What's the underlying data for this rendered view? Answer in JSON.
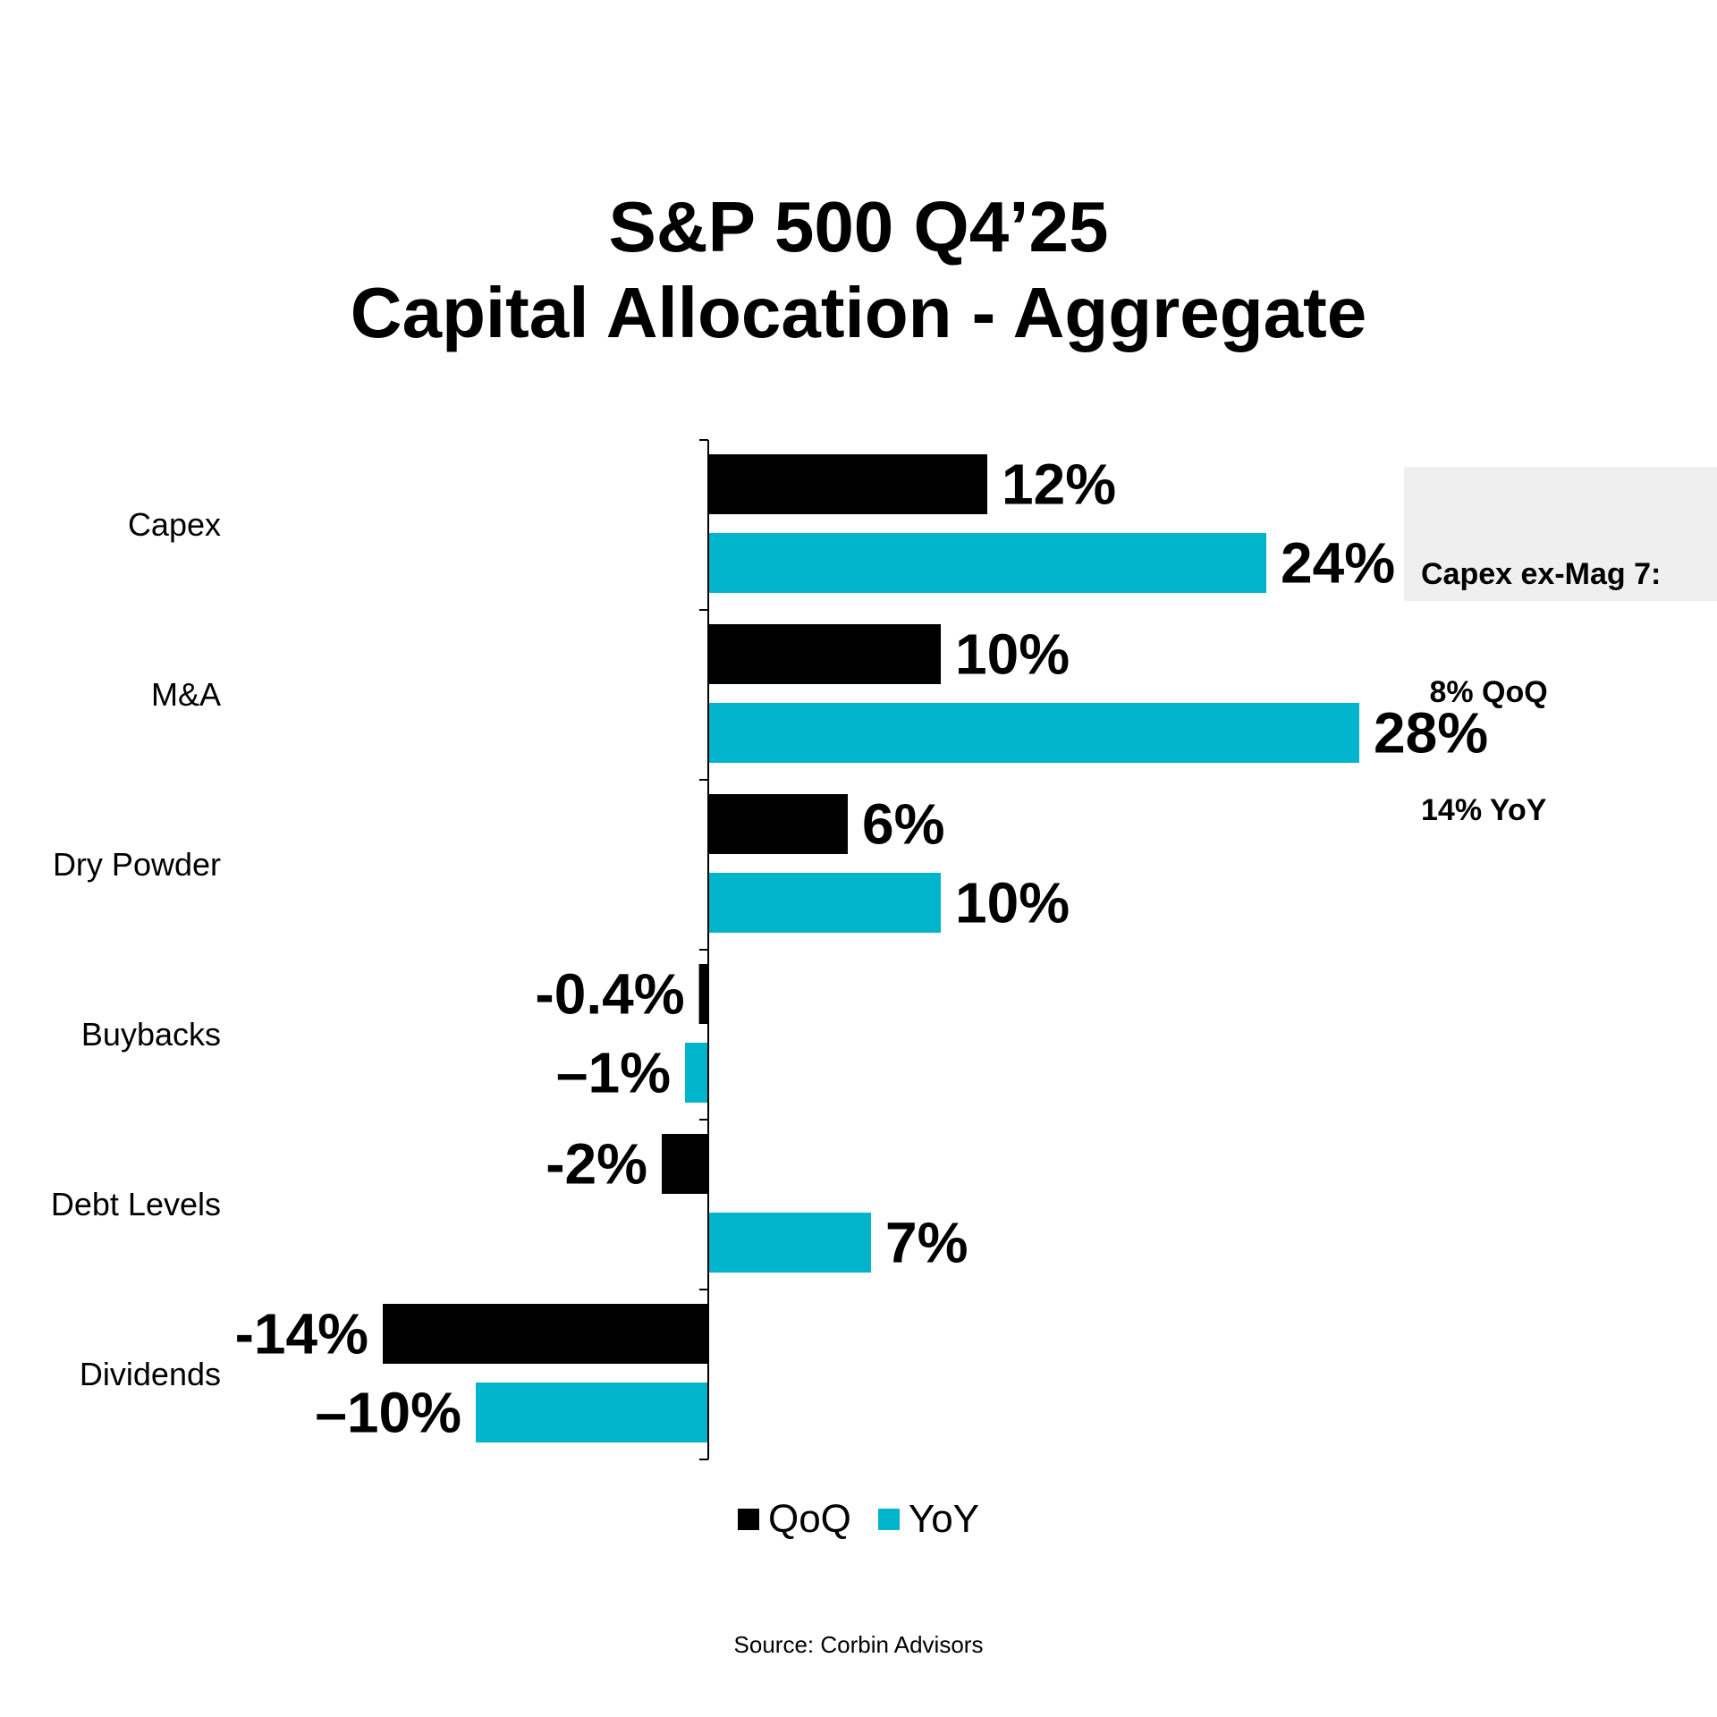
{
  "chart_data": {
    "type": "bar",
    "orientation": "horizontal",
    "title": [
      "S&P 500 Q4’25",
      "Capital Allocation - Aggregate"
    ],
    "categories": [
      "Capex",
      "M&A",
      "Dry Powder",
      "Buybacks",
      "Debt Levels",
      "Dividends"
    ],
    "series": [
      {
        "name": "QoQ",
        "color": "#000000",
        "values": [
          12,
          10,
          6,
          -0.4,
          -2,
          -14
        ],
        "labels": [
          "12%",
          "10%",
          "6%",
          "-0.4%",
          "-2%",
          "-14%"
        ]
      },
      {
        "name": "YoY",
        "color": "#00b4cc",
        "values": [
          24,
          28,
          10,
          -1,
          7,
          -10
        ],
        "labels": [
          "24%",
          "28%",
          "10%",
          "–1%",
          "7%",
          "–10%"
        ]
      }
    ],
    "xlabel": "",
    "ylabel": "",
    "xlim": [
      -14,
      28
    ],
    "grid": false,
    "legend": "bottom-center",
    "annotation": {
      "lines": [
        "Capex ex-Mag 7:",
        " 8% QoQ",
        "14% YoY"
      ]
    }
  },
  "source": "Source: Corbin Advisors"
}
